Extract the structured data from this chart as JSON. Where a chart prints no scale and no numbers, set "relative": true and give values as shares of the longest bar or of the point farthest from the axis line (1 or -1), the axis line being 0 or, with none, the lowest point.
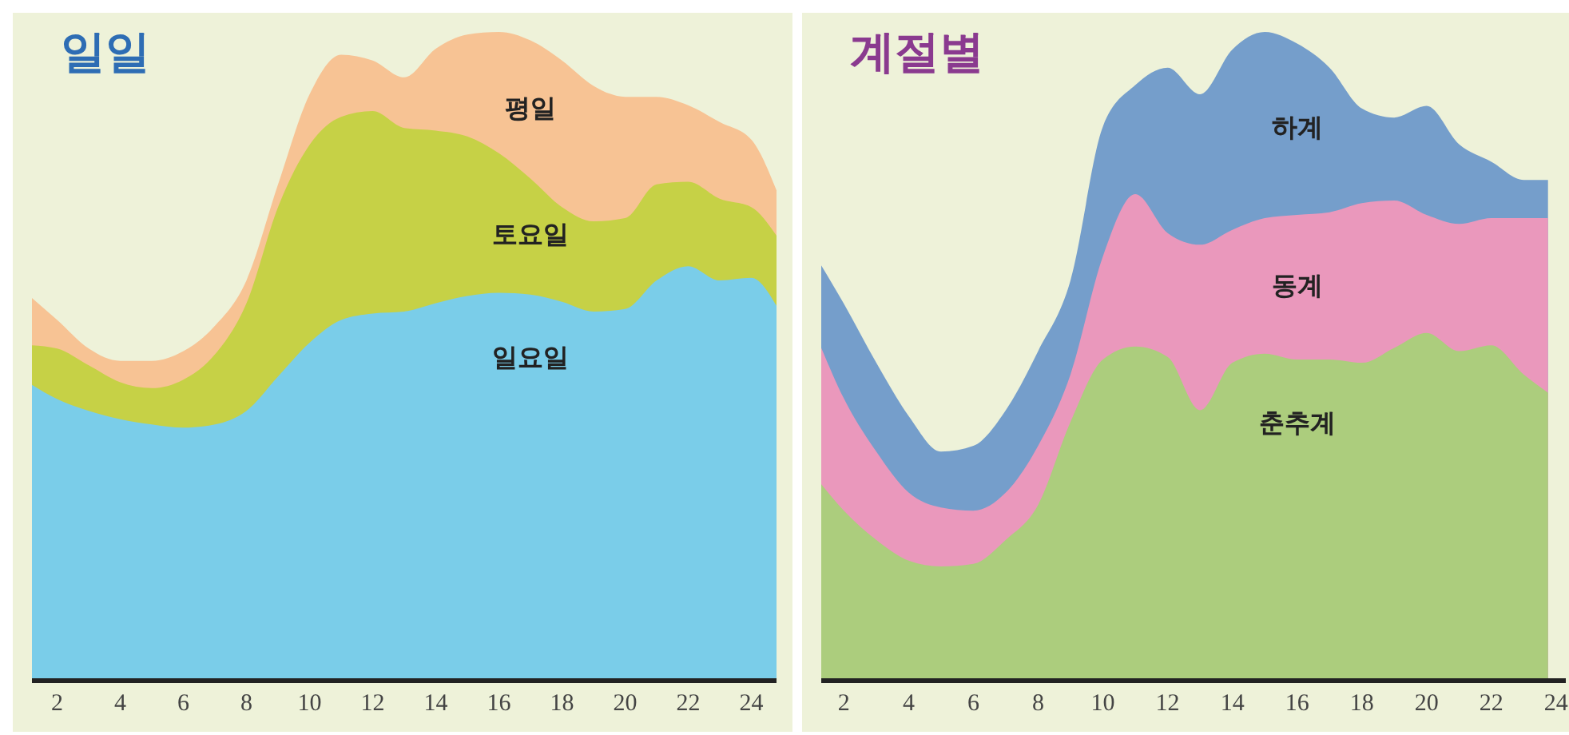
{
  "chart_data": [
    {
      "type": "area",
      "title": "일일",
      "relative": true,
      "x": [
        1.2,
        2,
        3,
        4,
        5,
        6,
        7,
        8,
        9,
        10,
        11,
        12,
        13,
        14,
        15,
        16,
        17,
        18,
        19,
        20,
        21,
        22,
        23,
        24,
        24.8
      ],
      "xlim": [
        1.2,
        24.8
      ],
      "xticks": [
        2,
        4,
        6,
        8,
        10,
        12,
        14,
        16,
        18,
        20,
        22,
        24
      ],
      "grid": false,
      "legend": false,
      "series": [
        {
          "name": "평일",
          "color": "#f7c394",
          "values": [
            0.59,
            0.556,
            0.512,
            0.493,
            0.493,
            0.508,
            0.547,
            0.617,
            0.765,
            0.904,
            0.965,
            0.956,
            0.93,
            0.974,
            0.996,
            1.0,
            0.987,
            0.956,
            0.917,
            0.9,
            0.9,
            0.887,
            0.861,
            0.834,
            0.756
          ]
        },
        {
          "name": "토요일",
          "color": "#c6d146",
          "values": [
            0.517,
            0.512,
            0.486,
            0.46,
            0.451,
            0.464,
            0.503,
            0.582,
            0.73,
            0.826,
            0.869,
            0.878,
            0.852,
            0.848,
            0.839,
            0.813,
            0.774,
            0.73,
            0.708,
            0.713,
            0.765,
            0.769,
            0.743,
            0.73,
            0.686
          ]
        },
        {
          "name": "일요일",
          "color": "#7acde9",
          "values": [
            0.456,
            0.434,
            0.416,
            0.403,
            0.395,
            0.39,
            0.395,
            0.416,
            0.469,
            0.521,
            0.556,
            0.566,
            0.569,
            0.582,
            0.593,
            0.598,
            0.595,
            0.584,
            0.569,
            0.573,
            0.617,
            0.639,
            0.617,
            0.621,
            0.578
          ]
        }
      ]
    },
    {
      "type": "area",
      "title": "계절별",
      "relative": true,
      "x": [
        1.3,
        2,
        3,
        4,
        5,
        6,
        7,
        8,
        9,
        10,
        11,
        12,
        13,
        14,
        15,
        16,
        17,
        18,
        19,
        20,
        21,
        22,
        23,
        23.75
      ],
      "xlim": [
        1.3,
        24.3
      ],
      "xticks": [
        2,
        4,
        6,
        8,
        10,
        12,
        14,
        16,
        18,
        20,
        22,
        24
      ],
      "grid": false,
      "legend": false,
      "series": [
        {
          "name": "하계",
          "color": "#759ecb",
          "values": [
            0.64,
            0.581,
            0.49,
            0.408,
            0.353,
            0.362,
            0.417,
            0.508,
            0.617,
            0.854,
            0.918,
            0.945,
            0.904,
            0.973,
            1.0,
            0.982,
            0.945,
            0.882,
            0.868,
            0.886,
            0.827,
            0.8,
            0.772,
            0.772
          ]
        },
        {
          "name": "동계",
          "color": "#ea98bc",
          "values": [
            0.513,
            0.435,
            0.353,
            0.29,
            0.267,
            0.262,
            0.29,
            0.362,
            0.472,
            0.654,
            0.75,
            0.69,
            0.672,
            0.695,
            0.713,
            0.718,
            0.722,
            0.736,
            0.74,
            0.718,
            0.704,
            0.713,
            0.713,
            0.713
          ]
        },
        {
          "name": "춘추계",
          "color": "#accd7d",
          "values": [
            0.303,
            0.262,
            0.217,
            0.185,
            0.176,
            0.18,
            0.217,
            0.271,
            0.399,
            0.495,
            0.515,
            0.499,
            0.417,
            0.49,
            0.504,
            0.495,
            0.495,
            0.49,
            0.513,
            0.536,
            0.508,
            0.517,
            0.472,
            0.444
          ]
        }
      ]
    }
  ]
}
